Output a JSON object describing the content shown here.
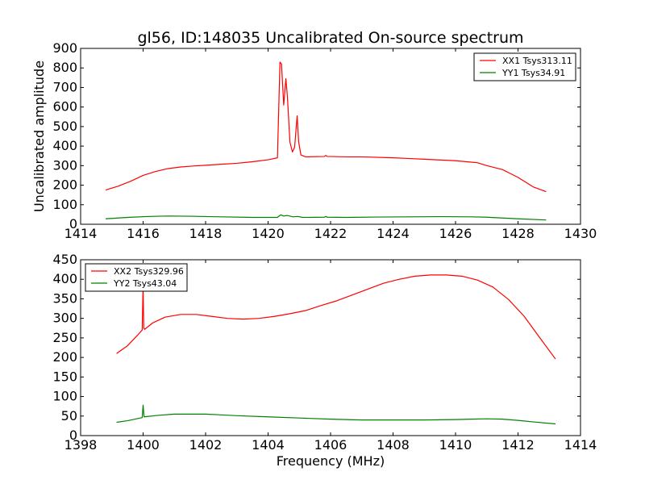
{
  "chart_data": [
    {
      "type": "line",
      "title": "gl56, ID:148035 Uncalibrated On-source spectrum",
      "xlabel": "",
      "ylabel": "Uncalibrated amplitude",
      "xlim": [
        1414,
        1430
      ],
      "ylim": [
        0,
        900
      ],
      "xticks": [
        1414,
        1416,
        1418,
        1420,
        1422,
        1424,
        1426,
        1428,
        1430
      ],
      "yticks": [
        0,
        100,
        200,
        300,
        400,
        500,
        600,
        700,
        800,
        900
      ],
      "legend_position": "top-right",
      "series": [
        {
          "name": "XX1 Tsys313.11",
          "color": "#ff0000",
          "points": [
            [
              1414.8,
              175
            ],
            [
              1415.2,
              195
            ],
            [
              1415.6,
              220
            ],
            [
              1416.0,
              250
            ],
            [
              1416.4,
              270
            ],
            [
              1416.8,
              285
            ],
            [
              1417.2,
              293
            ],
            [
              1417.6,
              298
            ],
            [
              1418.0,
              302
            ],
            [
              1418.5,
              307
            ],
            [
              1419.0,
              312
            ],
            [
              1419.5,
              320
            ],
            [
              1420.0,
              330
            ],
            [
              1420.3,
              340
            ],
            [
              1420.38,
              830
            ],
            [
              1420.43,
              820
            ],
            [
              1420.5,
              610
            ],
            [
              1420.57,
              745
            ],
            [
              1420.62,
              650
            ],
            [
              1420.7,
              420
            ],
            [
              1420.78,
              370
            ],
            [
              1420.85,
              395
            ],
            [
              1420.93,
              555
            ],
            [
              1420.98,
              420
            ],
            [
              1421.05,
              355
            ],
            [
              1421.2,
              345
            ],
            [
              1421.8,
              347
            ],
            [
              1421.85,
              352
            ],
            [
              1421.9,
              347
            ],
            [
              1422.5,
              345
            ],
            [
              1423.0,
              345
            ],
            [
              1424.0,
              340
            ],
            [
              1425.0,
              333
            ],
            [
              1426.0,
              325
            ],
            [
              1426.5,
              318
            ],
            [
              1426.7,
              315
            ],
            [
              1427.0,
              300
            ],
            [
              1427.5,
              280
            ],
            [
              1428.0,
              240
            ],
            [
              1428.5,
              190
            ],
            [
              1428.9,
              167
            ]
          ]
        },
        {
          "name": "YY1 Tsys34.91",
          "color": "#008000",
          "points": [
            [
              1414.8,
              28
            ],
            [
              1415.5,
              35
            ],
            [
              1416.2,
              40
            ],
            [
              1416.8,
              42
            ],
            [
              1417.5,
              41
            ],
            [
              1418.5,
              38
            ],
            [
              1419.5,
              35
            ],
            [
              1420.3,
              35
            ],
            [
              1420.4,
              48
            ],
            [
              1420.5,
              42
            ],
            [
              1420.6,
              45
            ],
            [
              1420.8,
              38
            ],
            [
              1420.95,
              40
            ],
            [
              1421.1,
              35
            ],
            [
              1421.8,
              36
            ],
            [
              1421.85,
              40
            ],
            [
              1421.9,
              36
            ],
            [
              1422.5,
              35
            ],
            [
              1423.5,
              37
            ],
            [
              1424.5,
              38
            ],
            [
              1425.5,
              39
            ],
            [
              1426.5,
              38
            ],
            [
              1427.0,
              36
            ],
            [
              1427.5,
              32
            ],
            [
              1428.0,
              28
            ],
            [
              1428.9,
              22
            ]
          ]
        }
      ]
    },
    {
      "type": "line",
      "title": "",
      "xlabel": "Frequency (MHz)",
      "ylabel": "",
      "xlim": [
        1398,
        1414
      ],
      "ylim": [
        0,
        450
      ],
      "xticks": [
        1398,
        1400,
        1402,
        1404,
        1406,
        1408,
        1410,
        1412,
        1414
      ],
      "yticks": [
        0,
        50,
        100,
        150,
        200,
        250,
        300,
        350,
        400,
        450
      ],
      "legend_position": "top-left",
      "series": [
        {
          "name": "XX2 Tsys329.96",
          "color": "#ff0000",
          "points": [
            [
              1399.15,
              210
            ],
            [
              1399.5,
              230
            ],
            [
              1399.8,
              255
            ],
            [
              1399.97,
              270
            ],
            [
              1400.0,
              385
            ],
            [
              1400.02,
              275
            ],
            [
              1400.05,
              272
            ],
            [
              1400.3,
              288
            ],
            [
              1400.7,
              303
            ],
            [
              1401.2,
              310
            ],
            [
              1401.7,
              310
            ],
            [
              1402.2,
              305
            ],
            [
              1402.7,
              300
            ],
            [
              1403.2,
              298
            ],
            [
              1403.7,
              300
            ],
            [
              1404.2,
              305
            ],
            [
              1404.7,
              312
            ],
            [
              1405.2,
              320
            ],
            [
              1405.7,
              333
            ],
            [
              1406.2,
              345
            ],
            [
              1406.7,
              360
            ],
            [
              1407.2,
              375
            ],
            [
              1407.7,
              390
            ],
            [
              1408.2,
              400
            ],
            [
              1408.7,
              408
            ],
            [
              1409.2,
              411
            ],
            [
              1409.7,
              411
            ],
            [
              1410.2,
              408
            ],
            [
              1410.7,
              398
            ],
            [
              1411.2,
              380
            ],
            [
              1411.7,
              348
            ],
            [
              1412.2,
              305
            ],
            [
              1412.7,
              250
            ],
            [
              1413.2,
              196
            ]
          ]
        },
        {
          "name": "YY2 Tsys43.04",
          "color": "#008000",
          "points": [
            [
              1399.15,
              34
            ],
            [
              1399.5,
              38
            ],
            [
              1399.97,
              46
            ],
            [
              1400.0,
              78
            ],
            [
              1400.03,
              48
            ],
            [
              1400.5,
              52
            ],
            [
              1401.0,
              55
            ],
            [
              1401.5,
              55
            ],
            [
              1402.0,
              55
            ],
            [
              1402.5,
              53
            ],
            [
              1403.0,
              51
            ],
            [
              1404.0,
              48
            ],
            [
              1405.0,
              45
            ],
            [
              1406.0,
              42
            ],
            [
              1407.0,
              40
            ],
            [
              1408.0,
              40
            ],
            [
              1409.0,
              40
            ],
            [
              1410.0,
              41
            ],
            [
              1410.5,
              42
            ],
            [
              1411.0,
              43
            ],
            [
              1411.5,
              42
            ],
            [
              1412.0,
              39
            ],
            [
              1412.5,
              35
            ],
            [
              1413.2,
              30
            ]
          ]
        }
      ]
    }
  ]
}
